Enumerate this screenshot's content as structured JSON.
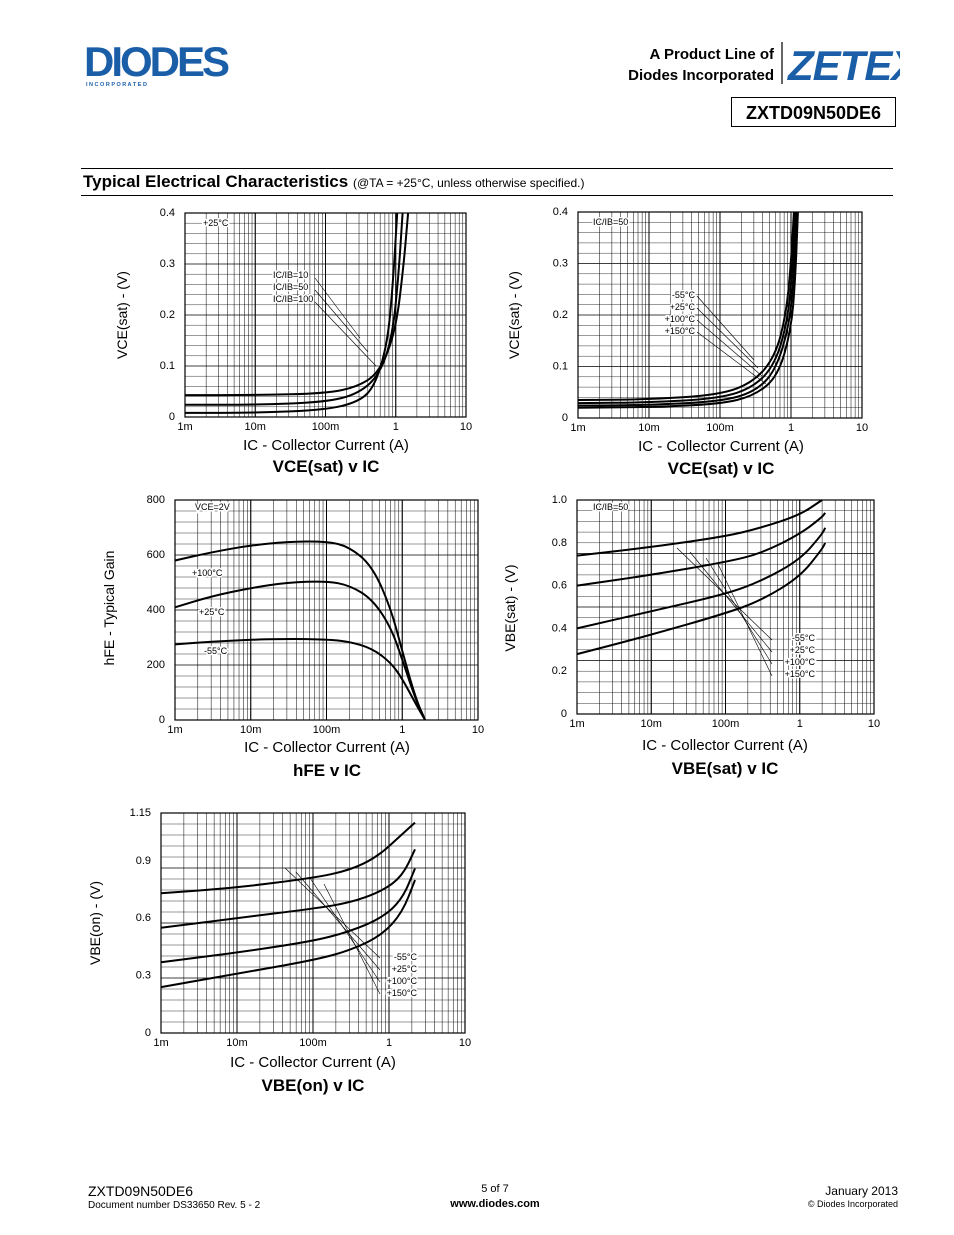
{
  "header": {
    "brand_logo": "DIODES",
    "brand_sub": "I N C O R P O R A T E D",
    "product_line_1": "A Product Line of",
    "product_line_2": "Diodes Incorporated",
    "zetex_logo": "ZETEX",
    "part_number": "ZXTD09N50DE6"
  },
  "section": {
    "title": "Typical Electrical Characteristics",
    "condition": "(@TA = +25°C, unless otherwise specified.)"
  },
  "footer": {
    "part": "ZXTD09N50DE6",
    "doc": "Document number DS33650  Rev. 5 - 2",
    "page": "5 of 7",
    "url": "www.diodes.com",
    "date": "January 2013",
    "copyright": "© Diodes Incorporated"
  },
  "colors": {
    "logo_blue": "#1b5ea8",
    "ink": "#000000",
    "grid": "#000000"
  },
  "chart_data": [
    {
      "id": "c1",
      "type": "line",
      "title": "VCE(sat) v IC",
      "xlabel": "IC - Collector Current (A)",
      "ylabel": "VCE(sat) - (V)",
      "xscale": "log",
      "xlim": [
        0.001,
        10
      ],
      "ylim": [
        0,
        0.4
      ],
      "xticks": [
        "1m",
        "10m",
        "100m",
        "1",
        "10"
      ],
      "yticks": [
        "0",
        "0.1",
        "0.2",
        "0.3",
        "0.4"
      ],
      "annotations": [
        "+25°C",
        "IC/IB=10",
        "IC/IB=50",
        "IC/IB=100"
      ],
      "series": [
        {
          "name": "IC/IB=10",
          "x": [
            0.001,
            0.01,
            0.1,
            0.3,
            0.6,
            1.0,
            1.3,
            1.5
          ],
          "y": [
            0.043,
            0.043,
            0.046,
            0.06,
            0.09,
            0.17,
            0.3,
            0.4
          ]
        },
        {
          "name": "IC/IB=50",
          "x": [
            0.001,
            0.01,
            0.1,
            0.3,
            0.6,
            0.9,
            1.1,
            1.25
          ],
          "y": [
            0.024,
            0.024,
            0.029,
            0.046,
            0.085,
            0.16,
            0.28,
            0.4
          ]
        },
        {
          "name": "IC/IB=100",
          "x": [
            0.001,
            0.01,
            0.1,
            0.3,
            0.5,
            0.75,
            0.9,
            1.05
          ],
          "y": [
            0.008,
            0.008,
            0.014,
            0.03,
            0.06,
            0.14,
            0.25,
            0.4
          ]
        }
      ]
    },
    {
      "id": "c2",
      "type": "line",
      "title": "VCE(sat) v IC",
      "xlabel": "IC - Collector Current (A)",
      "ylabel": "VCE(sat) - (V)",
      "xscale": "log",
      "xlim": [
        0.001,
        10
      ],
      "ylim": [
        0,
        0.4
      ],
      "xticks": [
        "1m",
        "10m",
        "100m",
        "1",
        "10"
      ],
      "yticks": [
        "0",
        "0.1",
        "0.2",
        "0.3",
        "0.4"
      ],
      "annotations": [
        "IC/IB=50",
        "-55°C",
        "+25°C",
        "+100°C",
        "+150°C"
      ],
      "series": [
        {
          "name": "-55°C",
          "x": [
            0.001,
            0.01,
            0.1,
            0.3,
            0.6,
            0.85,
            1.0,
            1.1
          ],
          "y": [
            0.035,
            0.036,
            0.045,
            0.07,
            0.12,
            0.2,
            0.3,
            0.4
          ]
        },
        {
          "name": "+25°C",
          "x": [
            0.001,
            0.01,
            0.1,
            0.3,
            0.6,
            0.9,
            1.05,
            1.15
          ],
          "y": [
            0.029,
            0.03,
            0.038,
            0.06,
            0.105,
            0.19,
            0.29,
            0.4
          ]
        },
        {
          "name": "+100°C",
          "x": [
            0.001,
            0.01,
            0.1,
            0.3,
            0.6,
            0.95,
            1.1,
            1.2
          ],
          "y": [
            0.024,
            0.025,
            0.032,
            0.05,
            0.09,
            0.18,
            0.28,
            0.4
          ]
        },
        {
          "name": "+150°C",
          "x": [
            0.001,
            0.01,
            0.1,
            0.3,
            0.65,
            1.0,
            1.15,
            1.25
          ],
          "y": [
            0.02,
            0.021,
            0.027,
            0.043,
            0.08,
            0.17,
            0.27,
            0.4
          ]
        }
      ]
    },
    {
      "id": "c3",
      "type": "line",
      "title": "hFE v IC",
      "xlabel": "IC - Collector Current (A)",
      "ylabel": "hFE - Typical Gain",
      "xscale": "log",
      "xlim": [
        0.001,
        10
      ],
      "ylim": [
        0,
        800
      ],
      "xticks": [
        "1m",
        "10m",
        "100m",
        "1",
        "10"
      ],
      "yticks": [
        "0",
        "200",
        "400",
        "600",
        "800"
      ],
      "annotations": [
        "VCE=2V",
        "+100°C",
        "+25°C",
        "-55°C"
      ],
      "series": [
        {
          "name": "+100°C",
          "x": [
            0.001,
            0.003,
            0.01,
            0.03,
            0.1,
            0.2,
            0.4,
            0.7,
            1.0,
            1.5,
            2.0
          ],
          "y": [
            580,
            610,
            635,
            648,
            650,
            630,
            560,
            410,
            250,
            80,
            0
          ]
        },
        {
          "name": "+25°C",
          "x": [
            0.001,
            0.003,
            0.01,
            0.03,
            0.1,
            0.2,
            0.4,
            0.7,
            1.0,
            1.5,
            2.0
          ],
          "y": [
            410,
            450,
            480,
            500,
            505,
            490,
            440,
            340,
            220,
            75,
            0
          ]
        },
        {
          "name": "-55°C",
          "x": [
            0.001,
            0.003,
            0.01,
            0.03,
            0.1,
            0.2,
            0.4,
            0.7,
            1.0,
            1.5,
            2.0
          ],
          "y": [
            275,
            285,
            292,
            295,
            293,
            285,
            260,
            210,
            150,
            60,
            0
          ]
        }
      ]
    },
    {
      "id": "c4",
      "type": "line",
      "title": "VBE(sat) v IC",
      "xlabel": "IC - Collector Current (A)",
      "ylabel": "VBE(sat) - (V)",
      "xscale": "log",
      "xlim": [
        0.001,
        10
      ],
      "ylim": [
        0,
        1.0
      ],
      "xticks": [
        "1m",
        "10m",
        "100m",
        "1",
        "10"
      ],
      "yticks": [
        "0",
        "0.2",
        "0.4",
        "0.6",
        "0.8",
        "1.0"
      ],
      "annotations": [
        "IC/IB=50",
        "-55°C",
        "+25°C",
        "+100°C",
        "+150°C"
      ],
      "series": [
        {
          "name": "-55°C",
          "x": [
            0.001,
            0.01,
            0.1,
            0.3,
            1.0,
            2.0
          ],
          "y": [
            0.74,
            0.78,
            0.83,
            0.87,
            0.93,
            1.0
          ]
        },
        {
          "name": "+25°C",
          "x": [
            0.001,
            0.01,
            0.1,
            0.3,
            1.0,
            2.0,
            2.2
          ],
          "y": [
            0.6,
            0.65,
            0.71,
            0.75,
            0.84,
            0.92,
            0.94
          ]
        },
        {
          "name": "+100°C",
          "x": [
            0.001,
            0.01,
            0.1,
            0.3,
            1.0,
            2.0,
            2.2
          ],
          "y": [
            0.4,
            0.48,
            0.56,
            0.62,
            0.72,
            0.84,
            0.87
          ]
        },
        {
          "name": "+150°C",
          "x": [
            0.001,
            0.01,
            0.1,
            0.3,
            1.0,
            2.0,
            2.2
          ],
          "y": [
            0.28,
            0.37,
            0.47,
            0.53,
            0.64,
            0.77,
            0.8
          ]
        }
      ]
    },
    {
      "id": "c5",
      "type": "line",
      "title": "VBE(on) v IC",
      "xlabel": "IC - Collector Current (A)",
      "ylabel": "VBE(on) - (V)",
      "xscale": "log",
      "xlim": [
        0.001,
        10
      ],
      "ylim": [
        0,
        1.15
      ],
      "xticks": [
        "1m",
        "10m",
        "100m",
        "1",
        "10"
      ],
      "yticks": [
        "0",
        "0.3",
        "0.6",
        "0.9",
        "1.15"
      ],
      "annotations": [
        "-55°C",
        "+25°C",
        "+100°C",
        "+150°C"
      ],
      "series": [
        {
          "name": "-55°C",
          "x": [
            0.001,
            0.01,
            0.1,
            0.3,
            0.7,
            1.5,
            2.2
          ],
          "y": [
            0.73,
            0.76,
            0.81,
            0.85,
            0.92,
            1.04,
            1.1
          ]
        },
        {
          "name": "+25°C",
          "x": [
            0.001,
            0.01,
            0.1,
            0.3,
            0.8,
            1.5,
            2.2
          ],
          "y": [
            0.55,
            0.6,
            0.65,
            0.68,
            0.74,
            0.82,
            0.96
          ]
        },
        {
          "name": "+100°C",
          "x": [
            0.001,
            0.01,
            0.1,
            0.3,
            0.8,
            1.5,
            2.2
          ],
          "y": [
            0.37,
            0.42,
            0.48,
            0.53,
            0.6,
            0.7,
            0.86
          ]
        },
        {
          "name": "+150°C",
          "x": [
            0.001,
            0.01,
            0.1,
            0.3,
            0.8,
            1.5,
            2.2
          ],
          "y": [
            0.24,
            0.31,
            0.38,
            0.43,
            0.51,
            0.63,
            0.8
          ]
        }
      ]
    }
  ]
}
